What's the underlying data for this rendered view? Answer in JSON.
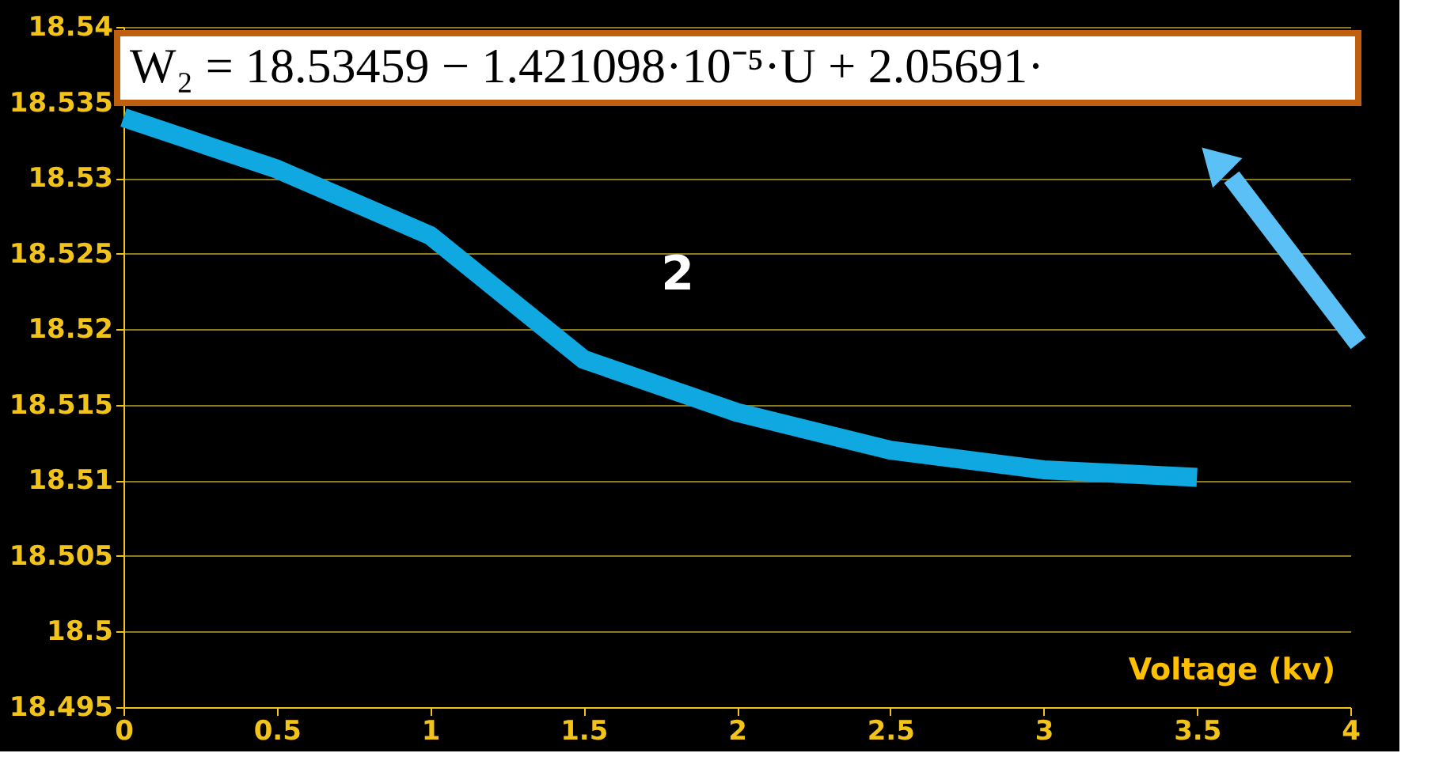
{
  "chart_data": {
    "type": "line",
    "xlabel": "Voltage (kv)",
    "x": [
      0,
      0.5,
      1,
      1.5,
      2,
      2.5,
      3,
      3.5
    ],
    "series": [
      {
        "color": "#0fa8e0",
        "values": [
          18.534,
          18.5306,
          18.5262,
          18.518,
          18.5145,
          18.512,
          18.5107,
          18.5102
        ]
      }
    ],
    "xlim": [
      0,
      4
    ],
    "xticks": [
      {
        "value": 0,
        "label": "0"
      },
      0.5,
      {
        "value": 1,
        "label": "1"
      },
      1.5,
      {
        "value": 2,
        "label": "2"
      },
      2.5,
      {
        "value": 3,
        "label": "3"
      },
      3.5,
      {
        "value": 4,
        "label": "4"
      }
    ],
    "ylim": [
      18.495,
      18.54
    ],
    "yticks": [
      18.495,
      18.5,
      18.505,
      18.51,
      18.515,
      18.52,
      18.525,
      18.53,
      18.535,
      18.54
    ],
    "grid": "y",
    "marker": "none",
    "line_style": "solid",
    "annotations": [
      "W₂ = 18.53459 − 1.421098·10⁻⁵·U + 2.05691·",
      "2"
    ]
  }
}
